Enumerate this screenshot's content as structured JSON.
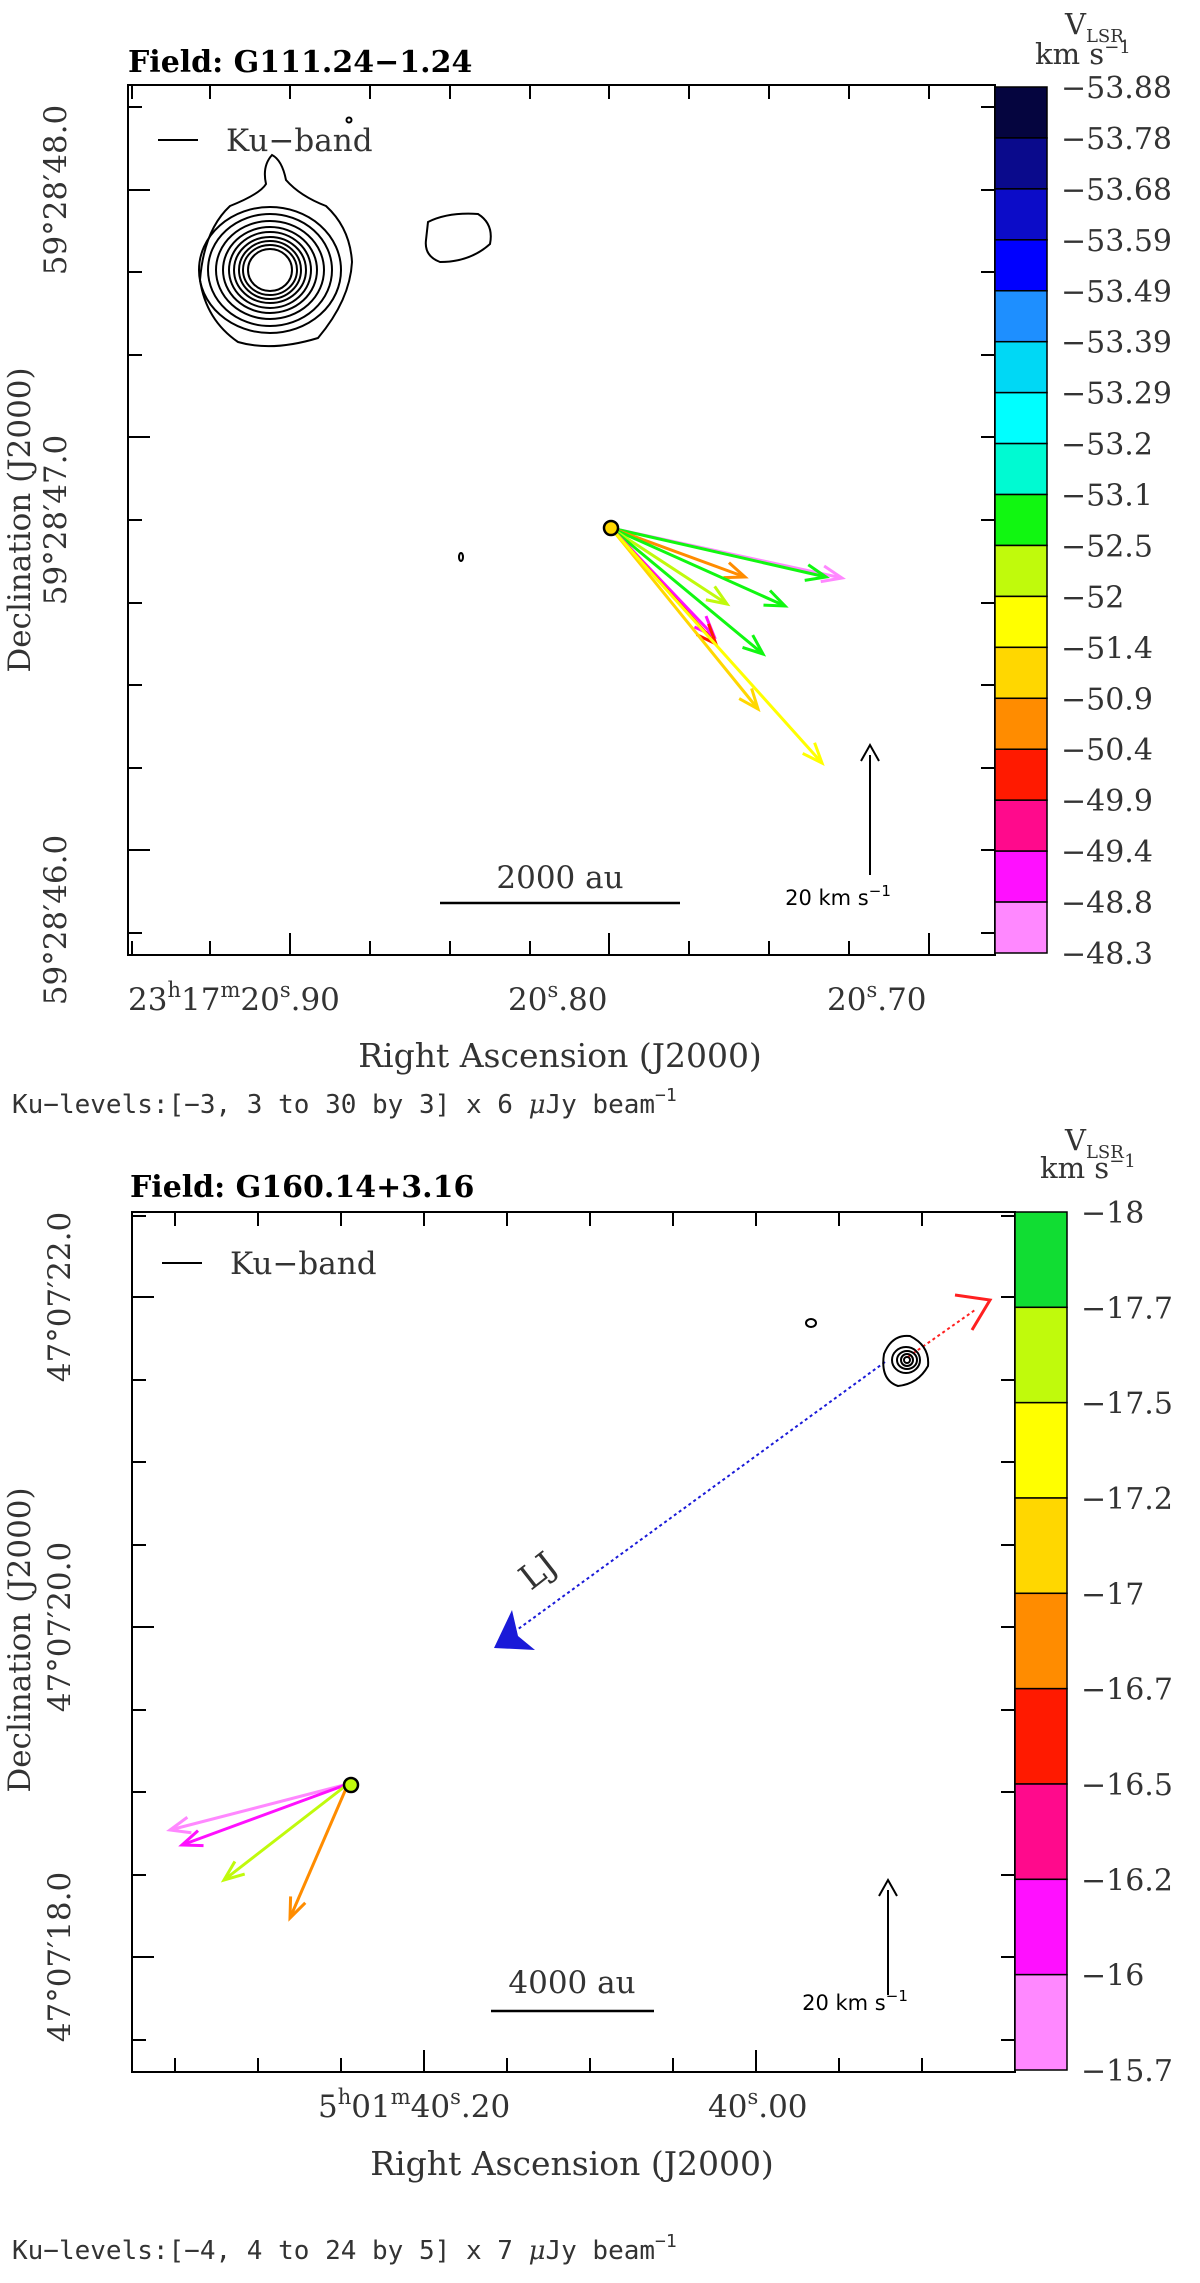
{
  "chart_data": [
    {
      "type": "scatter",
      "title": "Field: G111.24−1.24",
      "legend": "Ku−band",
      "xlabel": "Right Ascension (J2000)",
      "ylabel": "Declination (J2000)",
      "x_ticks": [
        {
          "pre": "23",
          "sup1": "h",
          "mid": "17",
          "sup2": "m",
          "main": "20",
          "sup3": "s",
          "tail": ".90"
        },
        {
          "pre": "",
          "sup1": "",
          "mid": "",
          "sup2": "",
          "main": "20",
          "sup3": "s",
          "tail": ".80"
        },
        {
          "pre": "",
          "sup1": "",
          "mid": "",
          "sup2": "",
          "main": "20",
          "sup3": "s",
          "tail": ".70"
        }
      ],
      "y_ticks": [
        "59°28′48.0",
        "59°28′47.0",
        "59°28′46.0"
      ],
      "colorbar_title": "V",
      "colorbar_sub": "LSR",
      "colorbar_units": "km s",
      "colorbar_units_sup": "−1",
      "colorbar_levels": [
        "−53.88",
        "−53.78",
        "−53.68",
        "−53.59",
        "−53.49",
        "−53.39",
        "−53.29",
        "−53.2",
        "−53.1",
        "−52.5",
        "−52",
        "−51.4",
        "−50.9",
        "−50.4",
        "−49.9",
        "−49.4",
        "−48.8",
        "−48.3"
      ],
      "colorbar_colors": [
        "#05053f",
        "#0a0a8c",
        "#0c0cc8",
        "#0000ff",
        "#1e8fff",
        "#00d8f5",
        "#00ffff",
        "#00fad2",
        "#11f711",
        "#c0fa0c",
        "#ffff00",
        "#ffd700",
        "#ff8c00",
        "#ff1a00",
        "#ff0a8c",
        "#ff10ff",
        "#ff88ff"
      ],
      "scale_bar": "2000 au",
      "velocity_bar": "20 km s",
      "velocity_bar_sup": "−1",
      "levels_pre": "Ku−levels:[−3, 3 to 30 by 3] x 6 ",
      "levels_mu": "μ",
      "levels_post": "Jy beam",
      "levels_sup": "−1",
      "maser_colors": [
        "#ff88ff",
        "#11f711",
        "#ff8c00",
        "#11f711",
        "#c0fa0c",
        "#11f711",
        "#ff10ff",
        "#ff1a00",
        "#ffd700",
        "#ffff00"
      ]
    },
    {
      "type": "scatter",
      "title": "Field: G160.14+3.16",
      "legend": "Ku−band",
      "xlabel": "Right Ascension (J2000)",
      "ylabel": "Declination (J2000)",
      "x_ticks": [
        {
          "pre": "5",
          "sup1": "h",
          "mid": "01",
          "sup2": "m",
          "main": "40",
          "sup3": "s",
          "tail": ".20"
        },
        {
          "pre": "",
          "sup1": "",
          "mid": "",
          "sup2": "",
          "main": "40",
          "sup3": "s",
          "tail": ".00"
        }
      ],
      "y_ticks": [
        "47°07′22.0",
        "47°07′20.0",
        "47°07′18.0"
      ],
      "colorbar_title": "V",
      "colorbar_sub": "LSR",
      "colorbar_units": "km s",
      "colorbar_units_sup": "−1",
      "colorbar_levels": [
        "−18",
        "−17.7",
        "−17.5",
        "−17.2",
        "−17",
        "−16.7",
        "−16.5",
        "−16.2",
        "−16",
        "−15.7"
      ],
      "colorbar_colors": [
        "#11dd33",
        "#c0fa0c",
        "#ffff00",
        "#ffd700",
        "#ff8c00",
        "#ff1a00",
        "#ff0a8c",
        "#ff10ff",
        "#ff88ff"
      ],
      "jet_label": "LJ",
      "scale_bar": "4000 au",
      "velocity_bar": "20 km s",
      "velocity_bar_sup": "−1",
      "levels_pre": "Ku−levels:[−4, 4 to 24 by 5] x 7 ",
      "levels_mu": "μ",
      "levels_post": "Jy beam",
      "levels_sup": "−1",
      "maser_colors": [
        "#ff88ff",
        "#ff10ff",
        "#c0fa0c",
        "#ff8c00"
      ]
    }
  ]
}
